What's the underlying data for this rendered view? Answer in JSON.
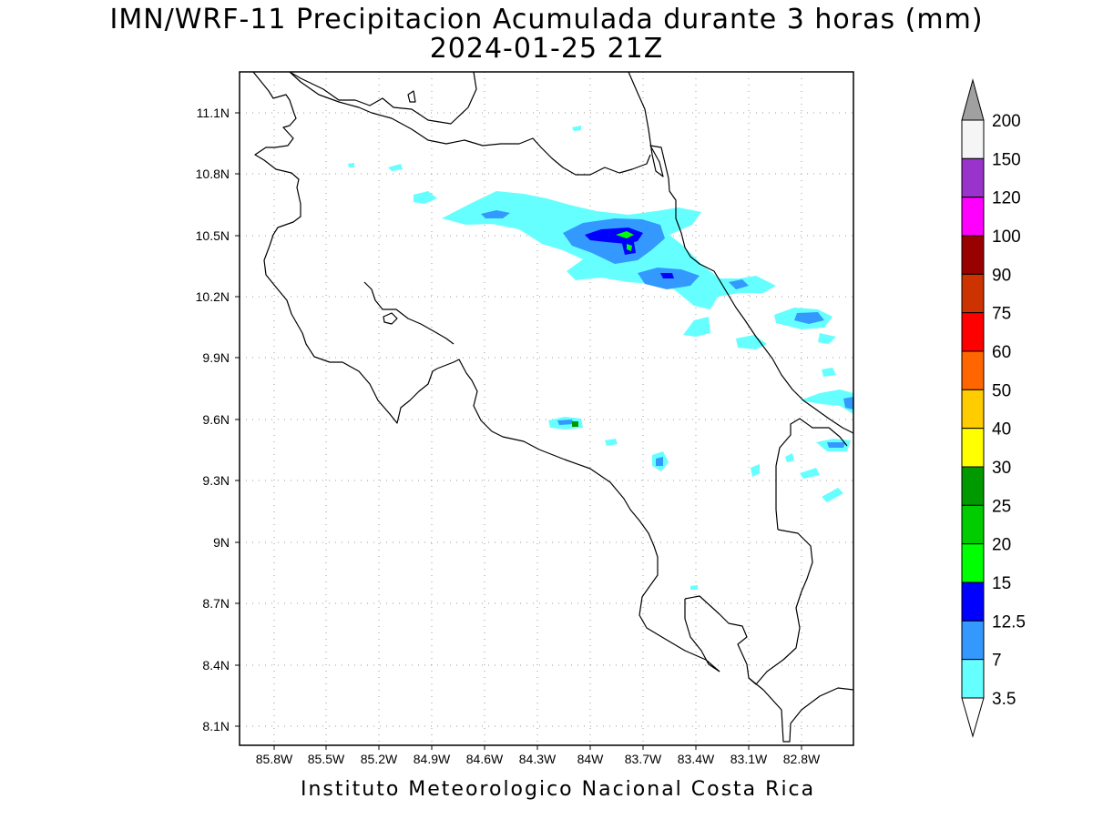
{
  "title": "IMN/WRF-11 Precipitacion Acumulada durante 3 horas (mm)",
  "subtitle": "2024-01-25 21Z",
  "footer": "Instituto Meteorologico Nacional Costa Rica",
  "map": {
    "lat_ticks": [
      "11.1N",
      "10.8N",
      "10.5N",
      "10.2N",
      "9.9N",
      "9.6N",
      "9.3N",
      "9N",
      "8.7N",
      "8.4N",
      "8.1N"
    ],
    "lon_ticks": [
      "85.8W",
      "85.5W",
      "85.2W",
      "84.9W",
      "84.6W",
      "84.3W",
      "84W",
      "83.7W",
      "83.4W",
      "83.1W",
      "82.8W"
    ],
    "grid": true
  },
  "colorbar": {
    "labels": [
      "200",
      "150",
      "120",
      "100",
      "90",
      "75",
      "60",
      "50",
      "40",
      "30",
      "25",
      "20",
      "15",
      "12.5",
      "7",
      "3.5"
    ],
    "colors": [
      "#f5f5f5",
      "#9933cc",
      "#ff00ff",
      "#990000",
      "#cc3300",
      "#ff0000",
      "#ff6600",
      "#ffcc00",
      "#ffff00",
      "#009900",
      "#00cc00",
      "#00ff00",
      "#0000ff",
      "#3399ff",
      "#66ffff"
    ],
    "top_arrow_color": "#a0a0a0",
    "bottom_arrow_color": "#ffffff"
  }
}
